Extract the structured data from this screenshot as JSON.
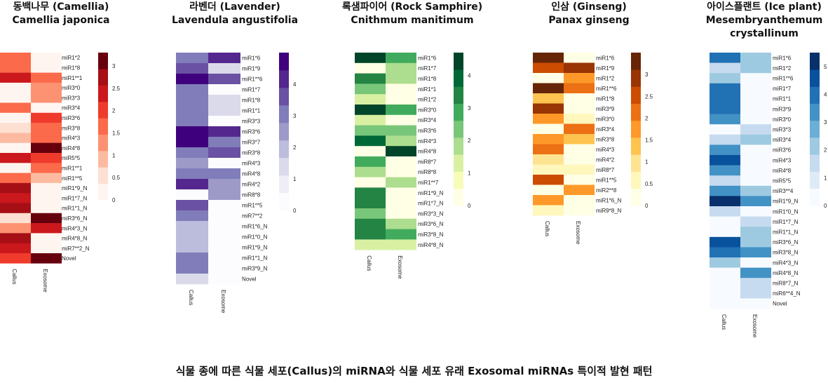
{
  "caption": "식물 종에 따른 식물 세포(Callus)의 miRNA와 식물 세포 유래 Exosomal miRNAs 특이적 발현 패턴",
  "chart_data": [
    {
      "type": "heatmap",
      "title_ko": "동백나무 (Camellia)",
      "title_sci": "Camellia japonica",
      "columns": [
        "Callus",
        "Exosome"
      ],
      "palette": "Reds",
      "colors": [
        "#fff5f0",
        "#fee0d2",
        "#fcbba1",
        "#fc9272",
        "#fb6a4a",
        "#ef3b2c",
        "#cb181d",
        "#a50f15",
        "#67000d"
      ],
      "range": [
        0,
        3.3
      ],
      "colorbar_ticks": [
        "3",
        "2.5",
        "2",
        "1.5",
        "1",
        "0.5",
        "0"
      ],
      "colorbar_tick_values": [
        3,
        2.5,
        2,
        1.5,
        1,
        0.5,
        0
      ],
      "rows": [
        "miR1*2",
        "miR1*8",
        "miR1**1",
        "miR3*0",
        "miR3*3",
        "miR3*4",
        "miR3*6",
        "miR3*8",
        "miR4*3",
        "miR4*8",
        "miR5*5",
        "miR1**1",
        "miR1**5",
        "miR1*9_N",
        "miR1*7_N",
        "miR1*1_N",
        "miR3*6_N",
        "miR4*3_N",
        "miR4*8_N",
        "miR7**2_N",
        "Novel"
      ],
      "values": [
        [
          1.8,
          0.1
        ],
        [
          1.8,
          0.1
        ],
        [
          2.4,
          1.7
        ],
        [
          0.3,
          1.4
        ],
        [
          0.3,
          1.1
        ],
        [
          1.7,
          0.1
        ],
        [
          0.3,
          1.9
        ],
        [
          0.5,
          1.8
        ],
        [
          0.9,
          1.6
        ],
        [
          0.1,
          3.2
        ],
        [
          2.5,
          1.9
        ],
        [
          0.2,
          1.8
        ],
        [
          1.7,
          0.9
        ],
        [
          2.8,
          0.2
        ],
        [
          2.2,
          0.2
        ],
        [
          2.8,
          0.1
        ],
        [
          0.6,
          3.1
        ],
        [
          1.2,
          2.2
        ],
        [
          2.6,
          0.3
        ],
        [
          2.2,
          0.2
        ],
        [
          2.1,
          3.2
        ]
      ]
    },
    {
      "type": "heatmap",
      "title_ko": "라벤더 (Lavender)",
      "title_sci": "Lavendula angustifolia",
      "columns": [
        "Callus",
        "Exosome"
      ],
      "palette": "Purples",
      "colors": [
        "#fcfbfd",
        "#efedf5",
        "#dadaeb",
        "#bcbddc",
        "#9e9ac8",
        "#807dba",
        "#6a51a3",
        "#54278f",
        "#3f007d"
      ],
      "range": [
        0,
        5
      ],
      "colorbar_ticks": [
        "4",
        "3",
        "2",
        "1",
        "0"
      ],
      "colorbar_tick_values": [
        4,
        3,
        2,
        1,
        0
      ],
      "rows": [
        "miR1*6",
        "miR1*9",
        "miR1**6",
        "miR1*7",
        "miR1*8",
        "miR1*1",
        "miR3*3",
        "miR3*6",
        "miR3*7",
        "miR3*8",
        "miR4*3",
        "miR4*8",
        "miR4*2",
        "miR8*8",
        "miR1**5",
        "miR7**2",
        "miR1*6_N",
        "miR1*0_N",
        "miR1*9_N",
        "miR1*1_N",
        "miR3*9_N",
        "Novel"
      ],
      "values": [
        [
          2.9,
          4.3
        ],
        [
          3.6,
          1.2
        ],
        [
          4.6,
          3.8
        ],
        [
          2.8,
          0.3
        ],
        [
          2.8,
          1.2
        ],
        [
          3.1,
          1.2
        ],
        [
          3.0,
          0.2
        ],
        [
          4.7,
          4.1
        ],
        [
          4.8,
          3.2
        ],
        [
          3.2,
          3.6
        ],
        [
          2.7,
          0.5
        ],
        [
          3.3,
          3.2
        ],
        [
          4.3,
          2.4
        ],
        [
          0.2,
          2.3
        ],
        [
          3.6,
          0.4
        ],
        [
          3.1,
          0.5
        ],
        [
          1.9,
          0.2
        ],
        [
          1.9,
          0.2
        ],
        [
          1.9,
          0.2
        ],
        [
          2.8,
          0.2
        ],
        [
          3.2,
          0.2
        ],
        [
          1.3,
          0.2
        ]
      ]
    },
    {
      "type": "heatmap",
      "title_ko": "록샘파이어 (Rock Samphire)",
      "title_sci": "Cnithmum manitimum",
      "columns": [
        "Callus",
        "Exosome"
      ],
      "palette": "Greens",
      "colors": [
        "#ffffe5",
        "#f7fcb9",
        "#d9f0a3",
        "#addd8e",
        "#78c679",
        "#41ab5d",
        "#238443",
        "#006837",
        "#004529"
      ],
      "range": [
        0,
        4.7
      ],
      "colorbar_ticks": [
        "4",
        "3",
        "2",
        "1",
        "0"
      ],
      "colorbar_tick_values": [
        4,
        3,
        2,
        1,
        0
      ],
      "rows": [
        "miR1*6",
        "miR1*7",
        "miR1*8",
        "miR1*1",
        "miR1*2",
        "miR3*0",
        "miR3*4",
        "miR3*6",
        "miR4*3",
        "miR4*8",
        "miR8*7",
        "miR8*8",
        "miR1**7",
        "miR1*9_N",
        "miR1*7_N",
        "miR3*3_N",
        "miR3*6_N",
        "miR3*8_N",
        "miR4*8_N"
      ],
      "values": [
        [
          4.5,
          3.0
        ],
        [
          0.1,
          1.6
        ],
        [
          3.5,
          1.8
        ],
        [
          2.2,
          0.2
        ],
        [
          1.2,
          0.2
        ],
        [
          4.6,
          3.0
        ],
        [
          1.5,
          0.3
        ],
        [
          2.5,
          2.4
        ],
        [
          4.1,
          1.9
        ],
        [
          0.1,
          4.3
        ],
        [
          3.0,
          0.2
        ],
        [
          1.6,
          0.3
        ],
        [
          0.2,
          1.6
        ],
        [
          3.6,
          0.1
        ],
        [
          3.6,
          0.1
        ],
        [
          2.5,
          0.1
        ],
        [
          3.6,
          1.9
        ],
        [
          3.6,
          3.0
        ],
        [
          1.4,
          1.4
        ]
      ]
    },
    {
      "type": "heatmap",
      "title_ko": "인삼 (Ginseng)",
      "title_sci": "Panax ginseng",
      "columns": [
        "Callus",
        "Exosome"
      ],
      "palette": "Oranges",
      "colors": [
        "#ffffe5",
        "#fff7bc",
        "#fee391",
        "#fec44f",
        "#fe9929",
        "#ec7014",
        "#cc4c02",
        "#993404",
        "#662506"
      ],
      "range": [
        0,
        3.5
      ],
      "colorbar_ticks": [
        "3",
        "2.5",
        "2",
        "1.5",
        "1",
        "0.5",
        "0"
      ],
      "colorbar_tick_values": [
        3,
        2.5,
        2,
        1.5,
        1,
        0.5,
        0
      ],
      "rows": [
        "miR1*6",
        "miR1*9",
        "miR1*2",
        "miR1**6",
        "miR1*8",
        "miR3*9",
        "miR3*0",
        "miR3*4",
        "miR3*8",
        "miR4*3",
        "miR4*2",
        "miR8*7",
        "miR1**5",
        "miR2**8",
        "miR1*6_N",
        "miR9*8_N"
      ],
      "values": [
        [
          3.3,
          0.1
        ],
        [
          2.6,
          3.1
        ],
        [
          0.1,
          1.6
        ],
        [
          3.3,
          2.2
        ],
        [
          1.4,
          0.3
        ],
        [
          2.8,
          0.3
        ],
        [
          1.6,
          0.5
        ],
        [
          0.1,
          2.0
        ],
        [
          1.9,
          1.4
        ],
        [
          2.1,
          0.1
        ],
        [
          0.8,
          0.2
        ],
        [
          0.7,
          0.5
        ],
        [
          2.6,
          0.2
        ],
        [
          0.1,
          1.8
        ],
        [
          1.9,
          0.2
        ],
        [
          0.7,
          0.1
        ]
      ]
    },
    {
      "type": "heatmap",
      "title_ko": "아이스플랜트 (Ice plant)",
      "title_sci": "Mesembryanthemum crystallinum",
      "columns": [
        "Callus",
        "Exosome"
      ],
      "palette": "Blues",
      "colors": [
        "#f7fbff",
        "#deebf7",
        "#c6dbef",
        "#9ecae1",
        "#6baed6",
        "#4292c6",
        "#2171b5",
        "#08519c",
        "#08306b"
      ],
      "range": [
        0,
        5.5
      ],
      "colorbar_ticks": [
        "5",
        "4",
        "3",
        "2",
        "1",
        "0"
      ],
      "colorbar_tick_values": [
        5,
        4,
        3,
        2,
        1,
        0
      ],
      "rows": [
        "miR1*6",
        "miR1*2",
        "miR1**6",
        "miR1*7",
        "miR1*1",
        "miR3*9",
        "miR3*0",
        "miR3*3",
        "miR3*4",
        "miR3*6",
        "miR4*3",
        "miR4*8",
        "miR5*5",
        "miR3**4",
        "miR1*9_N",
        "miR1*0_N",
        "miR1*7_N",
        "miR1*1_N",
        "miR3*6_N",
        "miR3*8_N",
        "miR4*3_N",
        "miR4*8_N",
        "miR8*7_N",
        "miR6**4_N",
        "Novel"
      ],
      "values": [
        [
          3.9,
          2.2
        ],
        [
          1.8,
          2.2
        ],
        [
          2.2,
          0.2
        ],
        [
          3.9,
          0.2
        ],
        [
          3.9,
          0.2
        ],
        [
          4.2,
          0.3
        ],
        [
          3.6,
          0.2
        ],
        [
          0.3,
          1.5
        ],
        [
          1.6,
          2.2
        ],
        [
          3.6,
          0.2
        ],
        [
          4.3,
          0.2
        ],
        [
          3.3,
          0.2
        ],
        [
          1.6,
          0.2
        ],
        [
          3.4,
          2.4
        ],
        [
          5.3,
          3.6
        ],
        [
          1.6,
          0.2
        ],
        [
          0.4,
          1.3
        ],
        [
          0.5,
          2.4
        ],
        [
          4.5,
          2.4
        ],
        [
          3.7,
          3.3
        ],
        [
          2.2,
          0.2
        ],
        [
          0.3,
          3.3
        ],
        [
          0.3,
          1.3
        ],
        [
          0.3,
          1.5
        ],
        [
          0.2,
          0.2
        ]
      ]
    }
  ]
}
